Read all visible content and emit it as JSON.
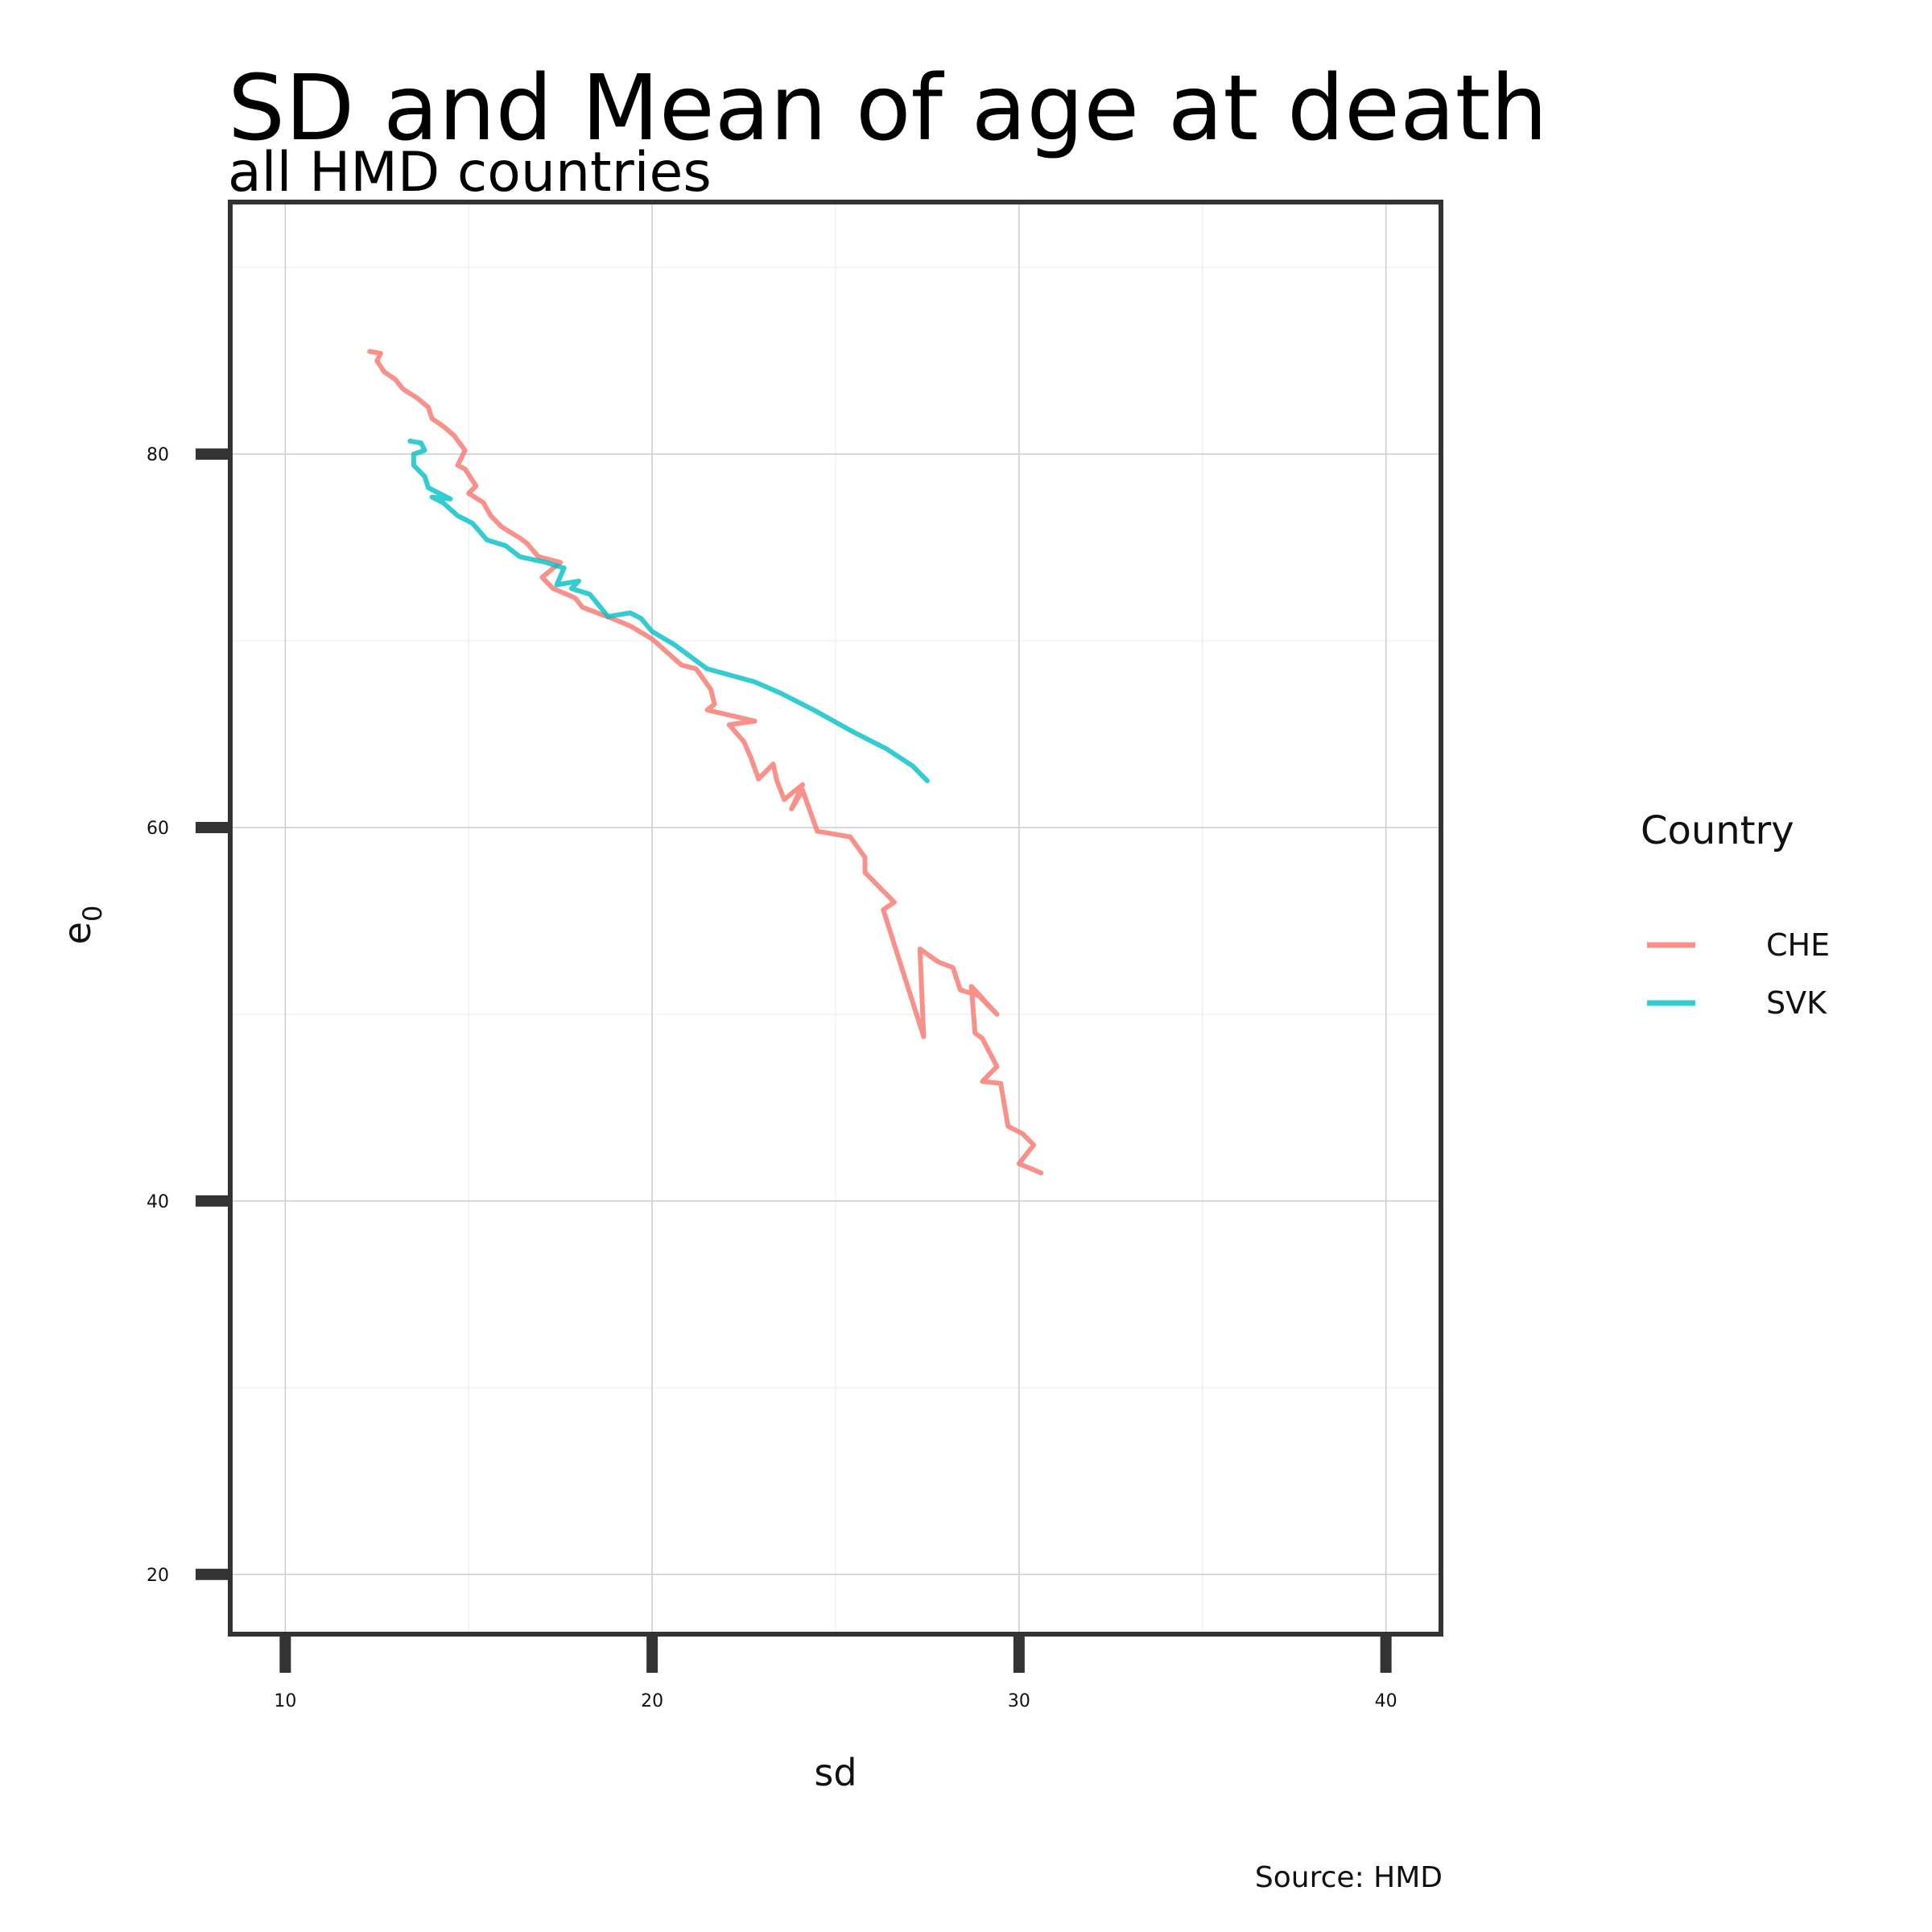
{
  "chart_data": {
    "type": "line",
    "title": "SD and Mean of age at death",
    "subtitle": "all HMD countries",
    "xlabel": "sd",
    "ylabel": "e",
    "ylabel_subscript": "0",
    "caption": "Source: HMD",
    "xlim": [
      8.5,
      41.5
    ],
    "ylim": [
      16.8,
      93.5
    ],
    "x_ticks": [
      10,
      20,
      30,
      40
    ],
    "y_ticks": [
      20,
      40,
      60,
      80
    ],
    "grid": true,
    "legend": {
      "title": "Country",
      "position": "right"
    },
    "series": [
      {
        "name": "CHE",
        "color": "#F8766D",
        "points": [
          [
            30.6,
            41.5
          ],
          [
            30.0,
            42.0
          ],
          [
            30.4,
            43.0
          ],
          [
            30.1,
            43.6
          ],
          [
            29.7,
            44.0
          ],
          [
            29.5,
            46.3
          ],
          [
            29.0,
            46.4
          ],
          [
            29.4,
            47.2
          ],
          [
            29.0,
            48.7
          ],
          [
            28.8,
            49.0
          ],
          [
            28.7,
            51.5
          ],
          [
            29.4,
            50.0
          ],
          [
            28.9,
            51.0
          ],
          [
            28.4,
            51.3
          ],
          [
            28.2,
            52.5
          ],
          [
            27.8,
            52.8
          ],
          [
            27.3,
            53.5
          ],
          [
            27.4,
            48.8
          ],
          [
            26.3,
            55.6
          ],
          [
            26.6,
            56.0
          ],
          [
            25.8,
            57.6
          ],
          [
            25.8,
            58.4
          ],
          [
            25.4,
            59.5
          ],
          [
            24.5,
            59.8
          ],
          [
            24.1,
            62.0
          ],
          [
            23.8,
            61.0
          ],
          [
            24.1,
            62.3
          ],
          [
            23.6,
            61.5
          ],
          [
            23.4,
            62.5
          ],
          [
            23.3,
            63.4
          ],
          [
            22.9,
            62.6
          ],
          [
            22.7,
            63.7
          ],
          [
            22.5,
            64.6
          ],
          [
            22.1,
            65.5
          ],
          [
            22.8,
            65.7
          ],
          [
            21.5,
            66.3
          ],
          [
            21.7,
            66.6
          ],
          [
            21.6,
            67.4
          ],
          [
            21.2,
            68.5
          ],
          [
            20.8,
            68.7
          ],
          [
            20.0,
            70.1
          ],
          [
            19.4,
            70.8
          ],
          [
            18.9,
            71.2
          ],
          [
            18.1,
            71.8
          ],
          [
            17.9,
            72.3
          ],
          [
            17.3,
            72.8
          ],
          [
            17.0,
            73.4
          ],
          [
            17.5,
            74.2
          ],
          [
            16.9,
            74.5
          ],
          [
            16.6,
            75.2
          ],
          [
            16.4,
            75.5
          ],
          [
            15.9,
            76.1
          ],
          [
            15.6,
            76.7
          ],
          [
            15.4,
            77.4
          ],
          [
            15.0,
            77.9
          ],
          [
            15.2,
            78.3
          ],
          [
            14.9,
            79.2
          ],
          [
            14.7,
            79.4
          ],
          [
            14.9,
            80.2
          ],
          [
            14.6,
            81.0
          ],
          [
            14.3,
            81.5
          ],
          [
            14.0,
            81.9
          ],
          [
            13.9,
            82.5
          ],
          [
            13.6,
            83.0
          ],
          [
            13.2,
            83.5
          ],
          [
            13.0,
            84.0
          ],
          [
            12.7,
            84.4
          ],
          [
            12.5,
            85.0
          ],
          [
            12.6,
            85.4
          ],
          [
            12.3,
            85.5
          ]
        ]
      },
      {
        "name": "SVK",
        "color": "#00BFC4",
        "points": [
          [
            27.5,
            62.5
          ],
          [
            27.1,
            63.3
          ],
          [
            26.4,
            64.2
          ],
          [
            25.5,
            65.1
          ],
          [
            24.4,
            66.3
          ],
          [
            23.5,
            67.2
          ],
          [
            22.8,
            67.8
          ],
          [
            21.5,
            68.5
          ],
          [
            20.6,
            69.8
          ],
          [
            20.0,
            70.5
          ],
          [
            19.7,
            71.2
          ],
          [
            19.4,
            71.5
          ],
          [
            18.8,
            71.3
          ],
          [
            18.3,
            72.5
          ],
          [
            17.8,
            72.8
          ],
          [
            18.0,
            73.2
          ],
          [
            17.4,
            73.0
          ],
          [
            17.6,
            73.9
          ],
          [
            17.1,
            74.2
          ],
          [
            16.4,
            74.5
          ],
          [
            16.0,
            75.1
          ],
          [
            15.5,
            75.4
          ],
          [
            15.1,
            76.3
          ],
          [
            14.7,
            76.7
          ],
          [
            14.3,
            77.4
          ],
          [
            14.0,
            77.7
          ],
          [
            14.5,
            77.6
          ],
          [
            13.9,
            78.2
          ],
          [
            13.8,
            78.8
          ],
          [
            13.5,
            79.4
          ],
          [
            13.5,
            80.0
          ],
          [
            13.8,
            80.2
          ],
          [
            13.7,
            80.6
          ],
          [
            13.4,
            80.7
          ]
        ]
      }
    ]
  }
}
